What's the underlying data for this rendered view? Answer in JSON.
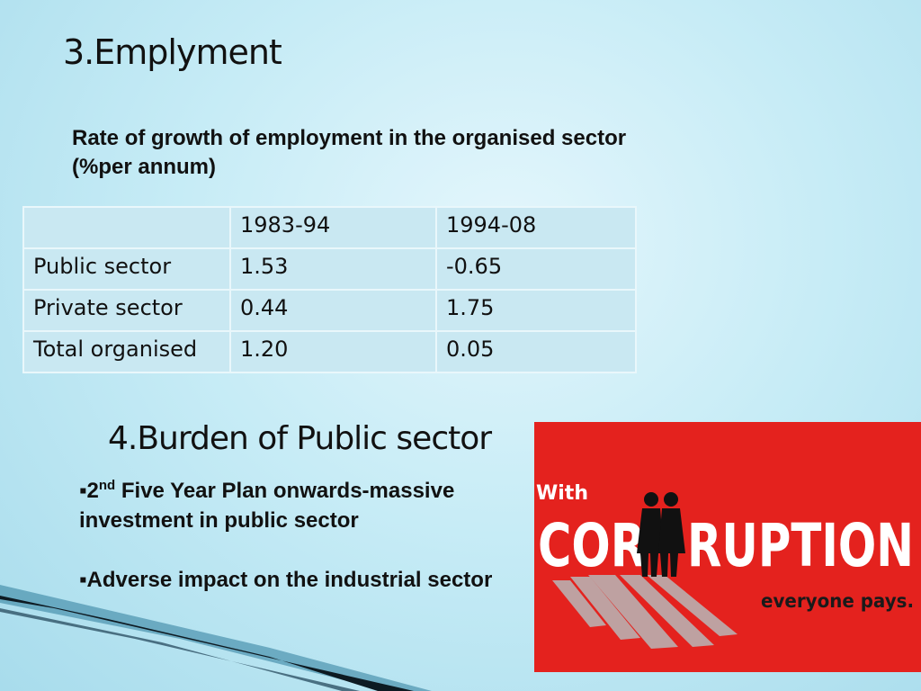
{
  "slide": {
    "heading_employment": "3.Emplyment",
    "subtitle": "Rate of growth of employment in the organised sector (%per annum)",
    "table": {
      "header": [
        "",
        "1983-94",
        "1994-08"
      ],
      "rows": [
        [
          "Public sector",
          "1.53",
          "-0.65"
        ],
        [
          "Private sector",
          "0.44",
          "1.75"
        ],
        [
          "Total organised",
          "1.20",
          "0.05"
        ]
      ]
    },
    "heading_burden": "4.Burden of Public sector",
    "bullets": [
      {
        "marker": "▪",
        "pre": "2",
        "sup": "nd",
        "post": " Five Year Plan onwards-massive investment in public sector"
      },
      {
        "marker": "▪",
        "pre": "Adverse impact on the industrial sector",
        "sup": "",
        "post": ""
      }
    ],
    "poster": {
      "word_top": "With",
      "word_left": "COR",
      "word_right": "RUPTION",
      "tagline": "everyone pays.",
      "colors": {
        "background": "#e4221e",
        "text": "#ffffff",
        "silhouette": "#111111",
        "tagline": "#1a1a1a"
      }
    }
  }
}
